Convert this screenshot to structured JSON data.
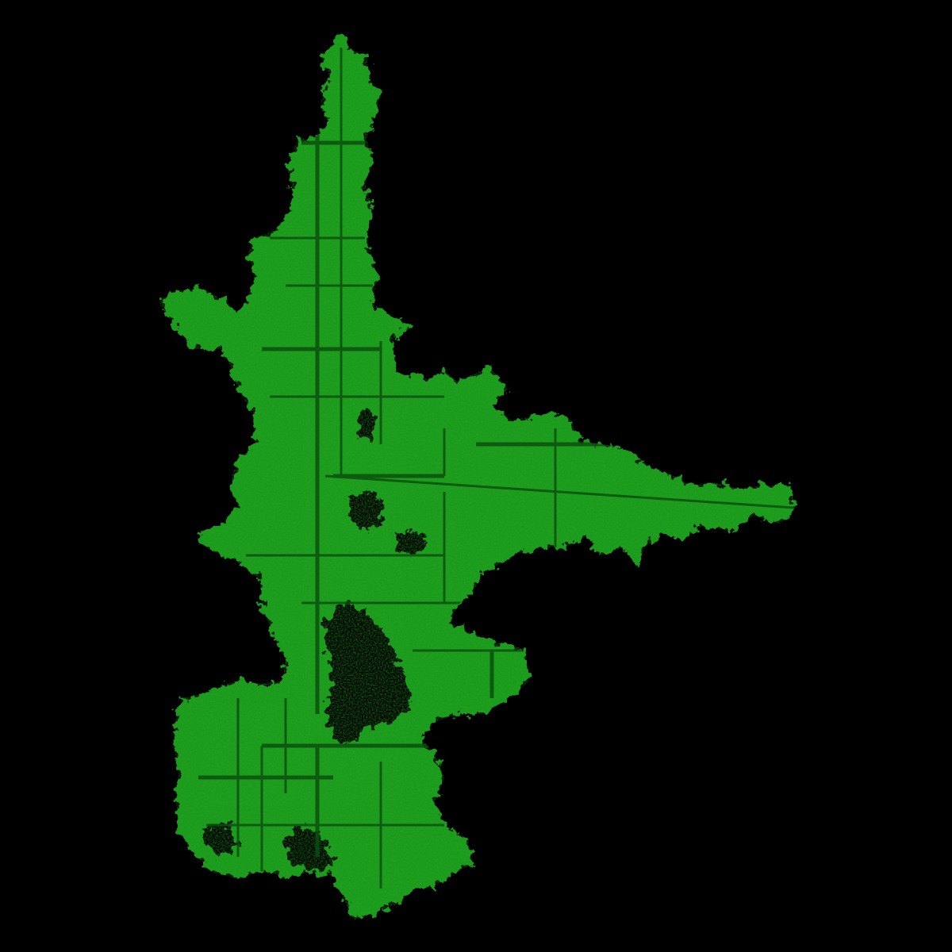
{
  "image": {
    "subject": "fractal-cluster",
    "background_color": "#000000",
    "fill_color": "#1f9a1f",
    "mid_color": "#17801a",
    "dark_color": "#0b4f0f",
    "highlight_color": "#2bbf2b"
  }
}
